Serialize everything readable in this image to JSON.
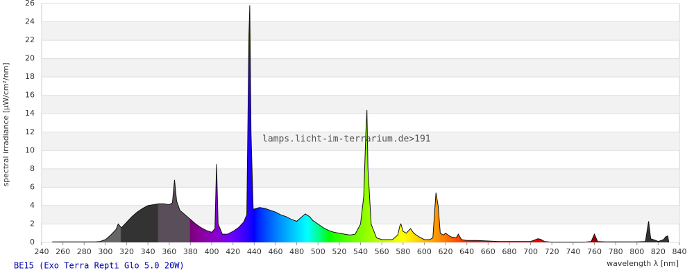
{
  "chart_data": {
    "type": "spectrum",
    "footer": "BE15 (Exo Terra Repti Glo 5.0 20W)",
    "watermark": "lamps.licht-im-terrarium.de>191",
    "y_label": "spectral irradiance [µW/cm²/nm]",
    "x_label": "wavelength λ [nm]",
    "xlim": [
      240,
      840
    ],
    "ylim": [
      0,
      26
    ],
    "xticks": [
      240,
      260,
      280,
      300,
      320,
      340,
      360,
      380,
      400,
      420,
      440,
      460,
      480,
      500,
      520,
      540,
      560,
      580,
      600,
      620,
      640,
      660,
      680,
      700,
      720,
      740,
      760,
      780,
      800,
      820,
      840
    ],
    "yticks": [
      0,
      2,
      4,
      6,
      8,
      10,
      12,
      14,
      16,
      18,
      20,
      22,
      24,
      26
    ],
    "grid": true,
    "x": [
      250,
      255,
      260,
      265,
      270,
      275,
      280,
      285,
      290,
      295,
      300,
      305,
      310,
      312,
      315,
      320,
      325,
      330,
      335,
      340,
      345,
      350,
      355,
      360,
      363,
      365,
      367,
      370,
      375,
      380,
      385,
      390,
      395,
      400,
      403,
      404.5,
      406,
      410,
      415,
      420,
      425,
      430,
      433,
      435,
      435.8,
      437,
      439,
      445,
      450,
      455,
      460,
      465,
      470,
      475,
      480,
      485,
      488,
      492,
      495,
      500,
      505,
      510,
      515,
      520,
      525,
      530,
      535,
      540,
      543,
      545,
      546,
      547,
      550,
      555,
      560,
      565,
      570,
      575,
      577,
      578,
      580,
      583,
      587,
      590,
      595,
      600,
      605,
      608,
      611,
      613,
      615,
      618,
      620,
      625,
      630,
      632,
      635,
      640,
      650,
      660,
      670,
      680,
      690,
      700,
      707,
      710,
      713,
      720,
      730,
      740,
      750,
      757,
      760,
      763,
      770,
      780,
      790,
      800,
      808,
      811,
      813,
      818,
      820,
      825,
      827,
      829,
      830
    ],
    "values": [
      0.05,
      0.05,
      0.05,
      0.05,
      0.05,
      0.05,
      0.05,
      0.05,
      0.05,
      0.1,
      0.3,
      0.8,
      1.4,
      2.0,
      1.6,
      2.2,
      2.8,
      3.3,
      3.7,
      4.0,
      4.1,
      4.2,
      4.2,
      4.1,
      4.3,
      6.8,
      4.5,
      3.5,
      3.0,
      2.5,
      2.0,
      1.6,
      1.3,
      1.1,
      1.5,
      8.5,
      2.0,
      0.9,
      0.9,
      1.2,
      1.6,
      2.2,
      3.0,
      22.6,
      25.8,
      12,
      3.6,
      3.8,
      3.7,
      3.5,
      3.3,
      3.0,
      2.8,
      2.5,
      2.3,
      2.8,
      3.1,
      2.8,
      2.4,
      2.0,
      1.6,
      1.3,
      1.1,
      1.0,
      0.9,
      0.8,
      0.9,
      2.0,
      5.0,
      12,
      14.4,
      8,
      2.0,
      0.5,
      0.3,
      0.3,
      0.3,
      0.8,
      1.8,
      2.0,
      1.2,
      1.0,
      1.5,
      1.0,
      0.6,
      0.3,
      0.3,
      0.5,
      5.4,
      4.0,
      1.0,
      0.8,
      1.0,
      0.6,
      0.5,
      0.9,
      0.3,
      0.2,
      0.2,
      0.15,
      0.1,
      0.1,
      0.1,
      0.1,
      0.4,
      0.3,
      0.1,
      0.02,
      0.02,
      0.02,
      0.02,
      0.1,
      0.9,
      0.1,
      0.05,
      0.05,
      0.05,
      0.05,
      0.1,
      2.3,
      0.4,
      0.2,
      0.1,
      0.3,
      0.6,
      0.7,
      0
    ]
  }
}
